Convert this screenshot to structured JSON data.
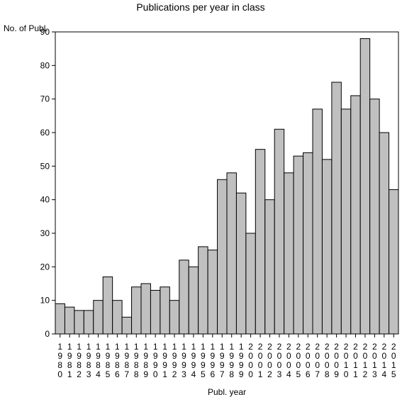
{
  "chart_data": {
    "type": "bar",
    "title": "Publications per year in class",
    "ylabel": "No. of Publ.",
    "xlabel": "Publ. year",
    "ylim": [
      0,
      90
    ],
    "yticks": [
      0,
      10,
      20,
      30,
      40,
      50,
      60,
      70,
      80,
      90
    ],
    "grid": false,
    "categories": [
      "1980",
      "1981",
      "1982",
      "1983",
      "1984",
      "1985",
      "1986",
      "1987",
      "1988",
      "1989",
      "1990",
      "1991",
      "1992",
      "1993",
      "1994",
      "1995",
      "1996",
      "1997",
      "1998",
      "1999",
      "2000",
      "2001",
      "2002",
      "2003",
      "2004",
      "2005",
      "2006",
      "2007",
      "2008",
      "2009",
      "2010",
      "2011",
      "2012",
      "2013",
      "2014",
      "2015"
    ],
    "values": [
      9,
      8,
      7,
      7,
      10,
      17,
      10,
      5,
      14,
      15,
      13,
      14,
      10,
      22,
      20,
      26,
      25,
      46,
      48,
      42,
      30,
      55,
      40,
      61,
      48,
      53,
      54,
      67,
      52,
      75,
      67,
      71,
      88,
      70,
      60,
      43
    ],
    "bar_color": "#c0c0c0",
    "bar_stroke": "#000000"
  }
}
